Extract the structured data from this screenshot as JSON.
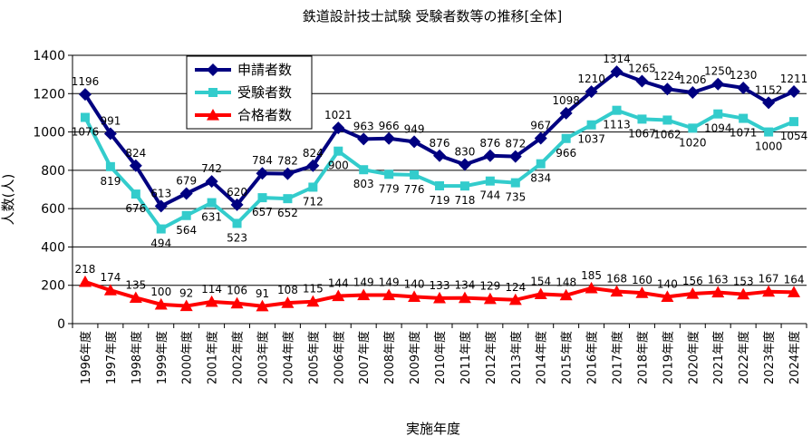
{
  "chart_data": {
    "type": "line",
    "title": "鉄道設計技士試験 受験者数等の推移[全体]",
    "xlabel": "実施年度",
    "ylabel": "人数(人)",
    "ylim": [
      0,
      1400
    ],
    "yticks": [
      0,
      200,
      400,
      600,
      800,
      1000,
      1200,
      1400
    ],
    "grid": true,
    "legend_position": "top-left",
    "categories": [
      "1996年度",
      "1997年度",
      "1998年度",
      "1999年度",
      "2000年度",
      "2001年度",
      "2002年度",
      "2003年度",
      "2004年度",
      "2005年度",
      "2006年度",
      "2007年度",
      "2008年度",
      "2009年度",
      "2010年度",
      "2011年度",
      "2012年度",
      "2013年度",
      "2014年度",
      "2015年度",
      "2016年度",
      "2017年度",
      "2018年度",
      "2019年度",
      "2020年度",
      "2021年度",
      "2022年度",
      "2023年度",
      "2024年度"
    ],
    "series": [
      {
        "name": "申請者数",
        "color": "#000080",
        "marker": "diamond",
        "values": [
          1196,
          991,
          824,
          613,
          679,
          742,
          620,
          784,
          782,
          824,
          1021,
          963,
          966,
          949,
          876,
          830,
          876,
          872,
          967,
          1098,
          1210,
          1314,
          1265,
          1224,
          1206,
          1250,
          1230,
          1152,
          1211
        ]
      },
      {
        "name": "受験者数",
        "color": "#33CCCC",
        "marker": "square",
        "values": [
          1076,
          819,
          676,
          494,
          564,
          631,
          523,
          657,
          652,
          712,
          900,
          803,
          779,
          776,
          719,
          718,
          744,
          735,
          834,
          966,
          1037,
          1113,
          1067,
          1062,
          1020,
          1094,
          1071,
          1000,
          1054
        ]
      },
      {
        "name": "合格者数",
        "color": "#FF0000",
        "marker": "triangle",
        "values": [
          218,
          174,
          135,
          100,
          92,
          114,
          106,
          91,
          108,
          115,
          144,
          149,
          149,
          140,
          133,
          134,
          129,
          124,
          154,
          148,
          185,
          168,
          160,
          140,
          156,
          163,
          153,
          167,
          164
        ]
      }
    ]
  }
}
